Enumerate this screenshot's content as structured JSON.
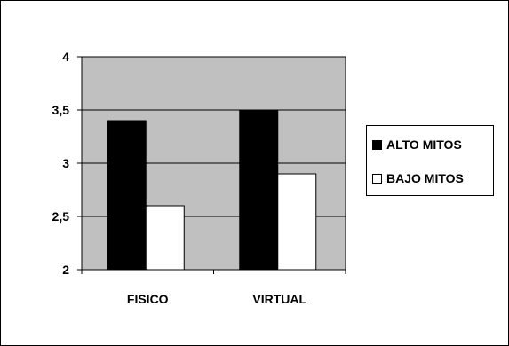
{
  "chart_data": {
    "type": "bar",
    "categories": [
      "FISICO",
      "VIRTUAL"
    ],
    "series": [
      {
        "name": "ALTO MITOS",
        "values": [
          3.4,
          3.5
        ],
        "color": "#000000"
      },
      {
        "name": "BAJO MITOS",
        "values": [
          2.6,
          2.9
        ],
        "color": "#ffffff"
      }
    ],
    "ylim": [
      2,
      4
    ],
    "yticks": [
      "2",
      "2,5",
      "3",
      "3,5",
      "4"
    ],
    "ytick_values": [
      2,
      2.5,
      3,
      3.5,
      4
    ],
    "grid": true,
    "plot_background": "#c0c0c0",
    "legend_position": "right"
  }
}
